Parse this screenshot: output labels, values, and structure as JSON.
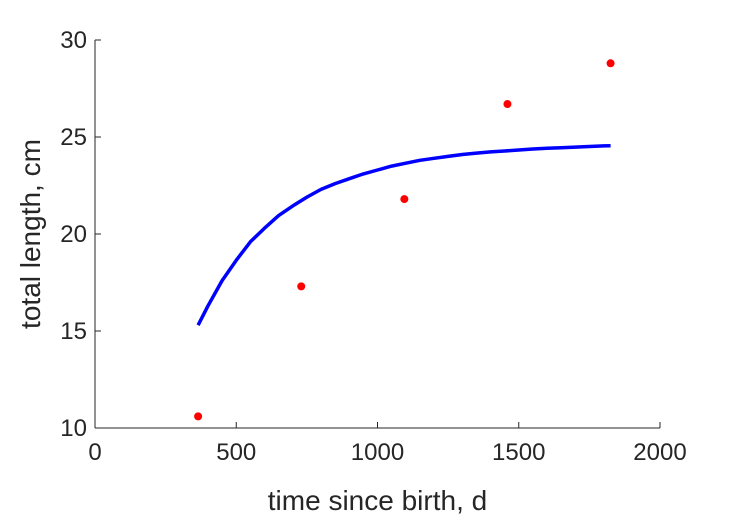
{
  "chart_data": {
    "type": "scatter",
    "xlabel": "time since birth, d",
    "ylabel": "total length, cm",
    "xlim": [
      0,
      2000
    ],
    "ylim": [
      10,
      30
    ],
    "xticks": [
      0,
      500,
      1000,
      1500,
      2000
    ],
    "yticks": [
      10,
      15,
      20,
      25,
      30
    ],
    "grid": false,
    "series": [
      {
        "kind": "points",
        "color": "#ff0000",
        "x": [
          365,
          730,
          1095,
          1460,
          1825
        ],
        "y": [
          10.6,
          17.3,
          21.8,
          26.7,
          28.8
        ]
      },
      {
        "kind": "line",
        "color": "#0000ff",
        "x": [
          365,
          400,
          450,
          500,
          550,
          600,
          650,
          700,
          750,
          800,
          850,
          900,
          950,
          1000,
          1050,
          1100,
          1150,
          1200,
          1250,
          1300,
          1350,
          1400,
          1450,
          1500,
          1550,
          1600,
          1650,
          1700,
          1750,
          1800,
          1825
        ],
        "y": [
          15.3,
          16.3,
          17.6,
          18.65,
          19.6,
          20.3,
          20.95,
          21.45,
          21.9,
          22.3,
          22.6,
          22.85,
          23.1,
          23.3,
          23.5,
          23.65,
          23.8,
          23.9,
          24.0,
          24.1,
          24.17,
          24.23,
          24.28,
          24.33,
          24.38,
          24.42,
          24.45,
          24.48,
          24.51,
          24.54,
          24.55
        ]
      }
    ]
  }
}
